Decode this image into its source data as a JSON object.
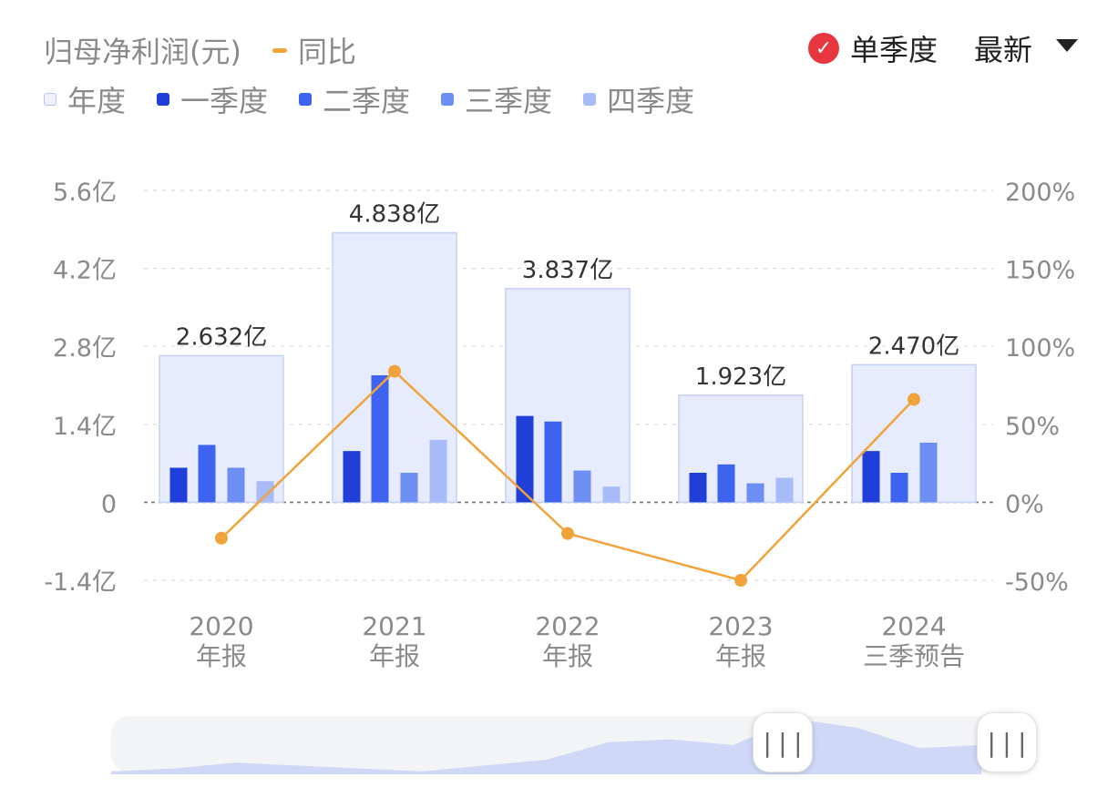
{
  "header": {
    "title": "归母净利润(元)",
    "yoy_label": "同比",
    "single_quarter_label": "单季度",
    "latest_label": "最新"
  },
  "legend": [
    {
      "label": "年度",
      "color": "#e6ebfd"
    },
    {
      "label": "一季度",
      "color": "#1f3fd8"
    },
    {
      "label": "二季度",
      "color": "#3d63f0"
    },
    {
      "label": "三季度",
      "color": "#6d8ef2"
    },
    {
      "label": "四季度",
      "color": "#a7bbf8"
    }
  ],
  "colors": {
    "annual_fill": "#e6ebfd",
    "annual_stroke": "#c5d0f6",
    "q1": "#1f3fd8",
    "q2": "#3d63f0",
    "q3": "#6d8ef2",
    "q4": "#a7bbf8",
    "yoy_line": "#f0a33a",
    "check": "#e8363f"
  },
  "chart_data": {
    "type": "bar",
    "categories": [
      {
        "year": "2020",
        "sub": "年报"
      },
      {
        "year": "2021",
        "sub": "年报"
      },
      {
        "year": "2022",
        "sub": "年报"
      },
      {
        "year": "2023",
        "sub": "年报"
      },
      {
        "year": "2024",
        "sub": "三季预告"
      }
    ],
    "annual": [
      2.632,
      4.838,
      3.837,
      1.923,
      2.47
    ],
    "annual_labels": [
      "2.632亿",
      "4.838亿",
      "3.837亿",
      "1.923亿",
      "2.470亿"
    ],
    "quarters": [
      [
        0.62,
        1.03,
        0.62,
        0.38
      ],
      [
        0.92,
        2.28,
        0.53,
        1.12
      ],
      [
        1.55,
        1.45,
        0.57,
        0.28
      ],
      [
        0.53,
        0.68,
        0.34,
        0.44
      ],
      [
        0.92,
        0.53,
        1.07,
        null
      ]
    ],
    "yoy_percent": [
      -23,
      84,
      -20,
      -50,
      66
    ],
    "left_axis": {
      "ticks": [
        5.6,
        4.2,
        2.8,
        1.4,
        0,
        -1.4
      ],
      "labels": [
        "5.6亿",
        "4.2亿",
        "2.8亿",
        "1.4亿",
        "0",
        "-1.4亿"
      ],
      "range": [
        -1.4,
        5.6
      ]
    },
    "right_axis": {
      "ticks": [
        200,
        150,
        100,
        50,
        0,
        -50
      ],
      "labels": [
        "200%",
        "150%",
        "100%",
        "50%",
        "0%",
        "-50%"
      ],
      "range": [
        -50,
        200
      ]
    },
    "grid": true
  },
  "scroller": {
    "handle_glyph": "|||",
    "overview": [
      0.05,
      0.1,
      0.2,
      0.15,
      0.1,
      0.05,
      0.15,
      0.25,
      0.55,
      0.6,
      0.5,
      0.95,
      0.8,
      0.45,
      0.5
    ]
  }
}
